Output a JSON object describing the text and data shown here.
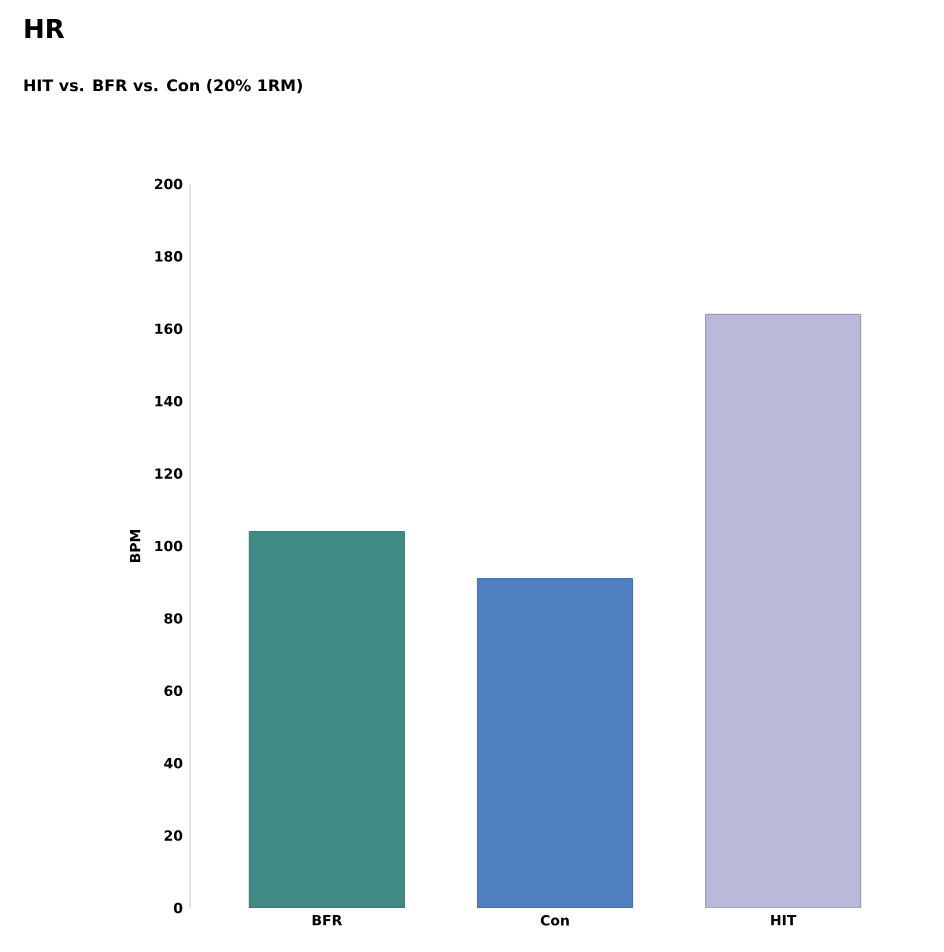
{
  "chart_data": {
    "type": "bar",
    "title": "HR",
    "subtitle": "HIT vs. BFR vs. Con (20% 1RM)",
    "ylabel": "BPM",
    "categories": [
      "BFR",
      "Con",
      "HIT"
    ],
    "values": [
      104,
      91,
      164
    ],
    "colors": [
      "#3f8a82",
      "#4f7fc0",
      "#b9b9d9"
    ],
    "ylim": [
      0,
      200
    ],
    "yticks": [
      0,
      20,
      40,
      60,
      80,
      100,
      120,
      140,
      160,
      180,
      200
    ],
    "grid": false
  }
}
